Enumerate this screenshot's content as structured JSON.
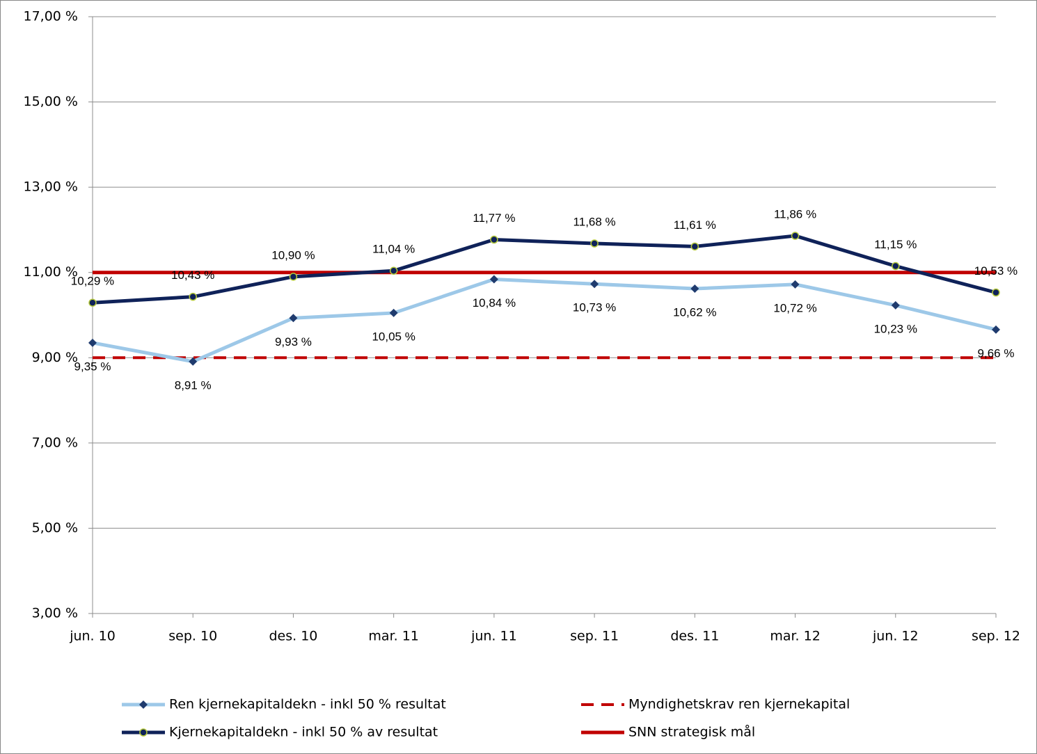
{
  "chart_data": {
    "type": "line",
    "categories": [
      "jun. 10",
      "sep. 10",
      "des. 10",
      "mar. 11",
      "jun. 11",
      "sep. 11",
      "des. 11",
      "mar. 12",
      "jun. 12",
      "sep. 12"
    ],
    "ylim": [
      3,
      17
    ],
    "yticks": [
      {
        "value": 3,
        "label": "3,00 %"
      },
      {
        "value": 5,
        "label": "5,00 %"
      },
      {
        "value": 7,
        "label": "7,00 %"
      },
      {
        "value": 9,
        "label": "9,00 %"
      },
      {
        "value": 11,
        "label": "11,00 %"
      },
      {
        "value": 13,
        "label": "13,00 %"
      },
      {
        "value": 15,
        "label": "15,00 %"
      },
      {
        "value": 17,
        "label": "17,00 %"
      }
    ],
    "grid": true,
    "legend": "bottom",
    "series": [
      {
        "name": "Ren kjernekapitaldekn  - inkl 50 % resultat",
        "color": "#9dc8e8",
        "line_style": "solid",
        "marker": "diamond",
        "marker_color": "#1f3b6e",
        "label_position": "below",
        "values": [
          9.35,
          8.91,
          9.93,
          10.05,
          10.84,
          10.73,
          10.62,
          10.72,
          10.23,
          9.66
        ],
        "value_labels": [
          "9,35 %",
          "8,91 %",
          "9,93 %",
          "10,05 %",
          "10,84 %",
          "10,73 %",
          "10,62 %",
          "10,72 %",
          "10,23 %",
          "9,66 %"
        ]
      },
      {
        "name": "Kjernekapitaldekn  - inkl 50 % av resultat",
        "color": "#0f2259",
        "line_style": "solid",
        "marker": "circle",
        "marker_color": "#0f2259",
        "label_position": "above",
        "values": [
          10.29,
          10.43,
          10.9,
          11.04,
          11.77,
          11.68,
          11.61,
          11.86,
          11.15,
          10.53
        ],
        "value_labels": [
          "10,29 %",
          "10,43 %",
          "10,90 %",
          "11,04 %",
          "11,77 %",
          "11,68 %",
          "11,61 %",
          "11,86 %",
          "11,15 %",
          "10,53 %"
        ]
      },
      {
        "name": "Myndighetskrav ren kjernekapital",
        "color": "#c00000",
        "line_style": "dashed",
        "marker": "none",
        "values": [
          9,
          9,
          9,
          9,
          9,
          9,
          9,
          9,
          9,
          9
        ]
      },
      {
        "name": "SNN strategisk mål",
        "color": "#c00000",
        "line_style": "solid",
        "marker": "none",
        "values": [
          11,
          11,
          11,
          11,
          11,
          11,
          11,
          11,
          11,
          11
        ]
      }
    ]
  }
}
